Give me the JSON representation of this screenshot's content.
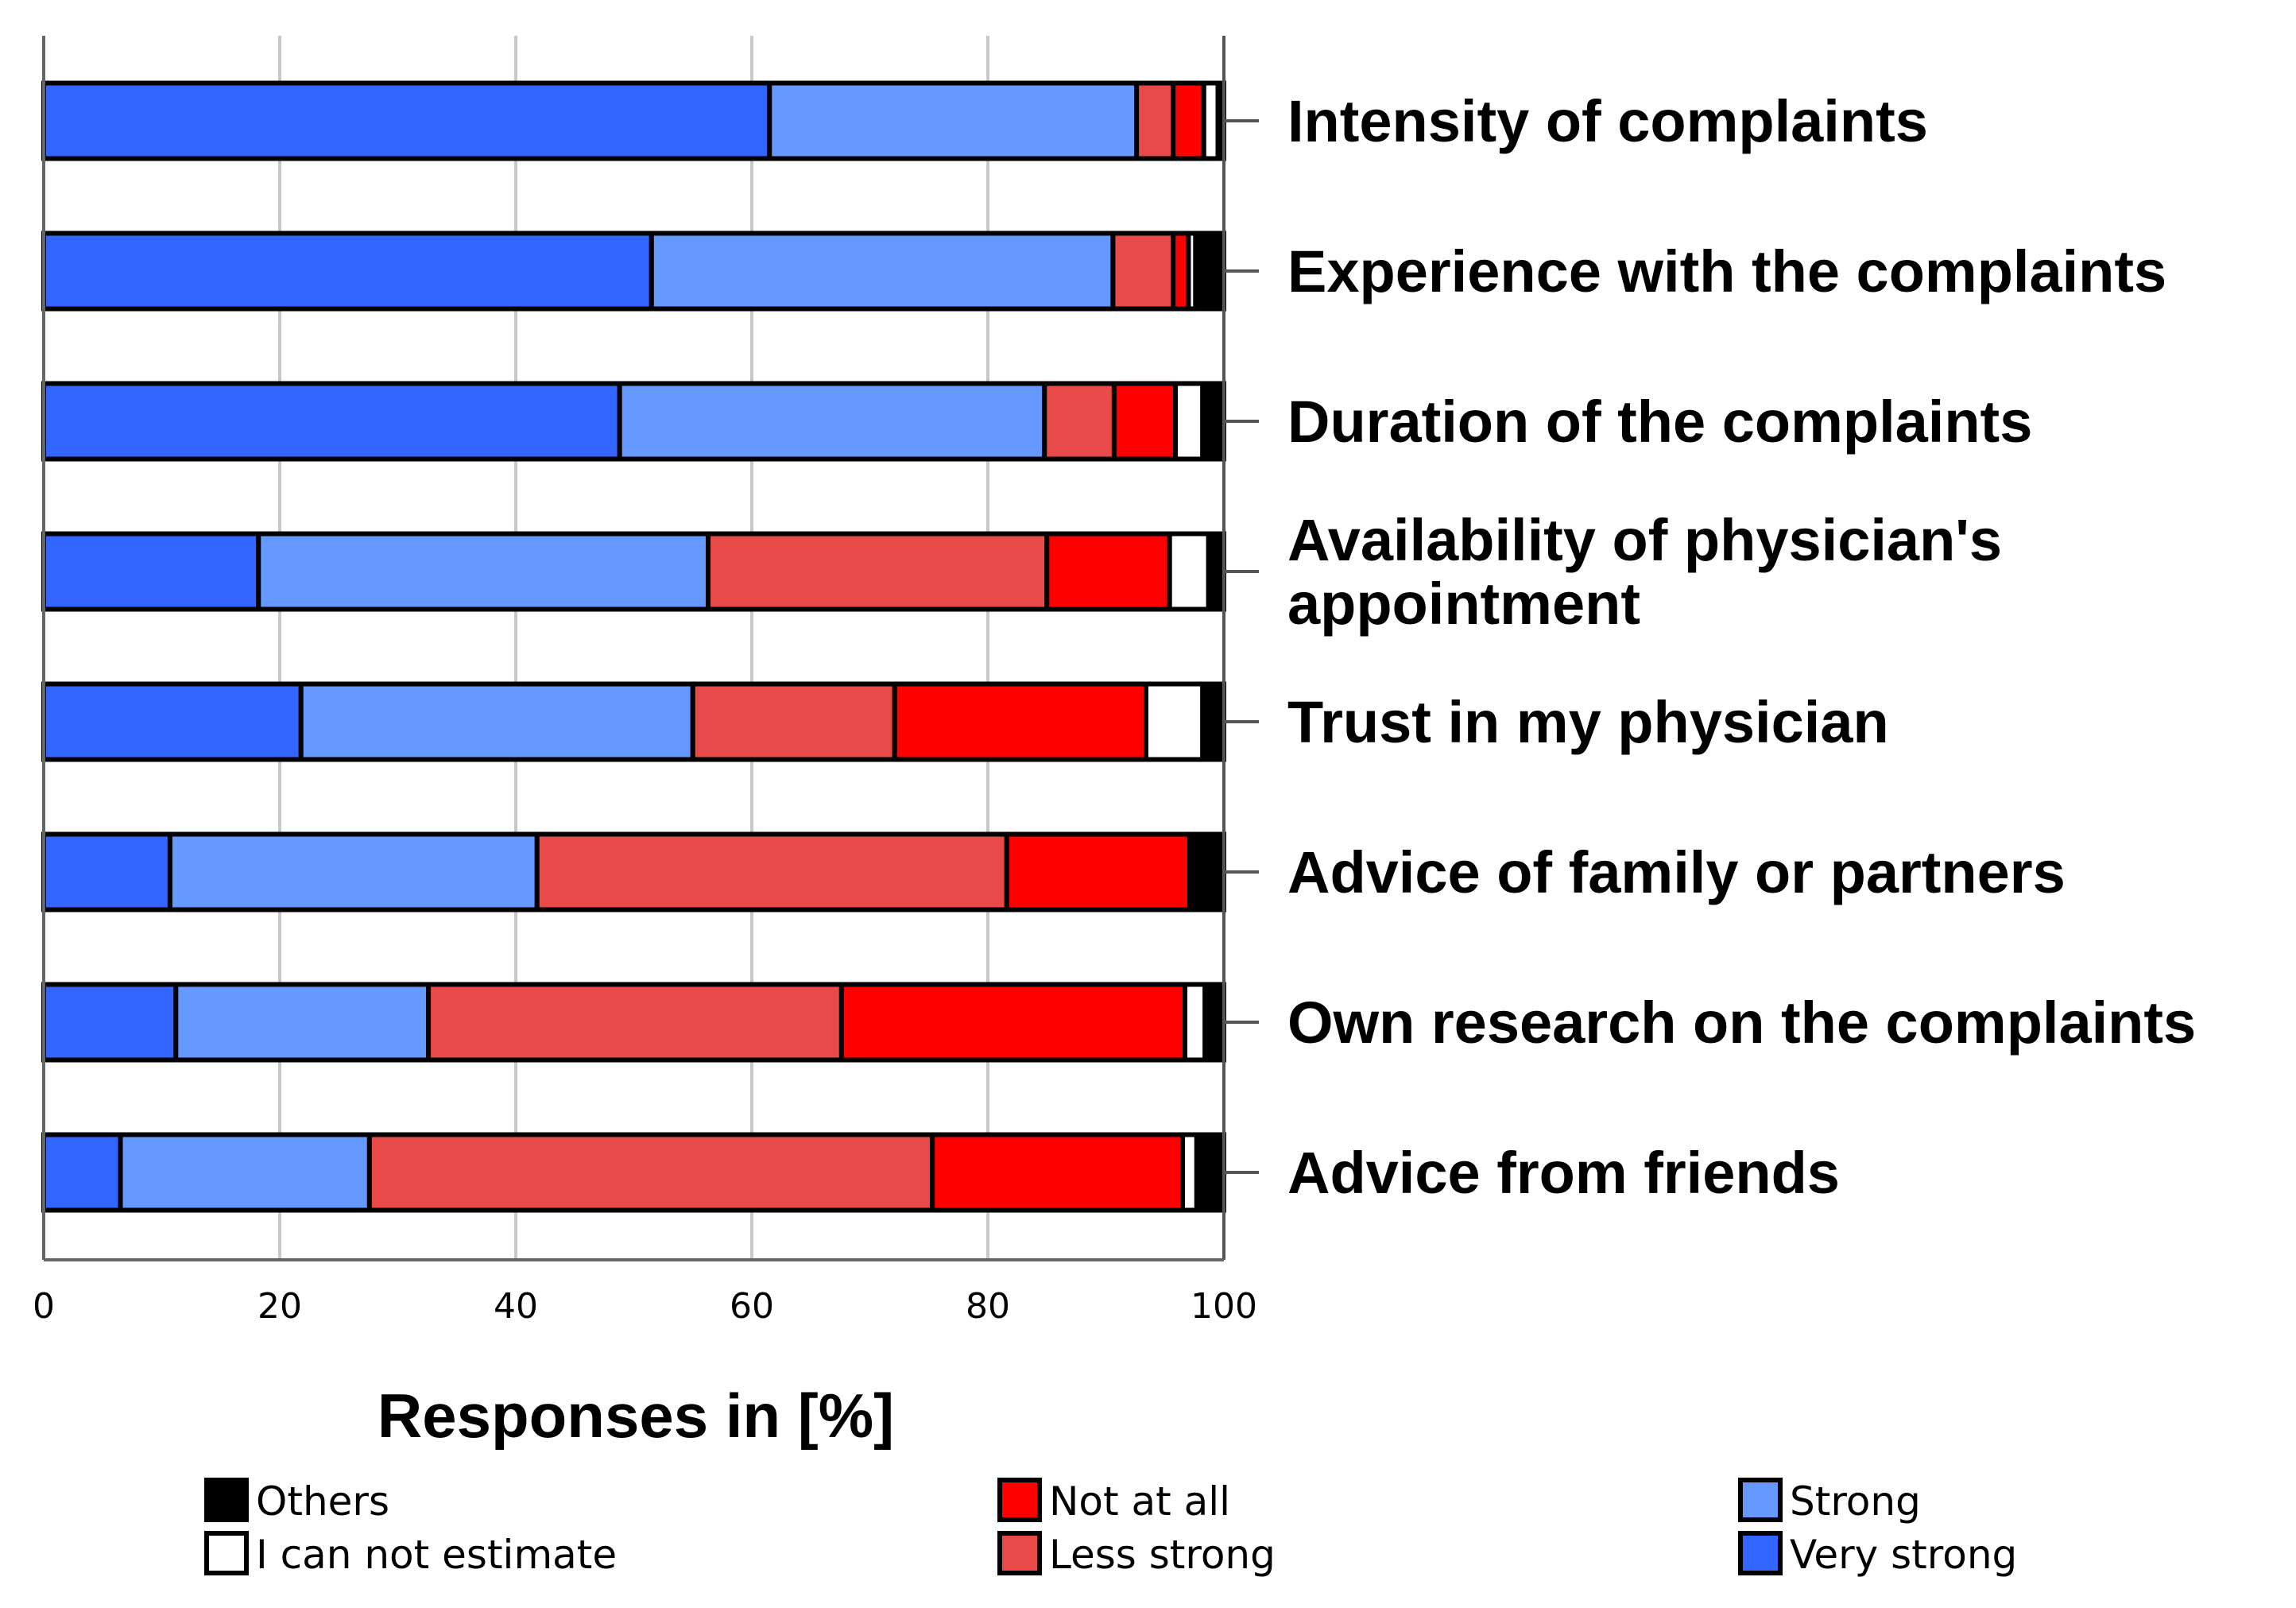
{
  "chart_data": {
    "type": "bar",
    "orientation": "horizontal-stacked",
    "xlabel": "Responses in [%]",
    "xlim": [
      0,
      100
    ],
    "xticks": [
      0,
      20,
      40,
      60,
      80,
      100
    ],
    "grid": true,
    "legend_position": "bottom",
    "categories": [
      "Intensity of complaints",
      "Experience with the complaints",
      "Duration of the complaints",
      "Availability of physician's appointment",
      "Trust in my physician",
      "Advice of family or partners",
      "Own research on the complaints",
      "Advice from friends"
    ],
    "category_lines": [
      [
        "Intensity of complaints"
      ],
      [
        "Experience with the complaints"
      ],
      [
        "Duration of the complaints"
      ],
      [
        "Availability of physician's",
        "appointment"
      ],
      [
        "Trust in my physician"
      ],
      [
        "Advice of family or partners"
      ],
      [
        "Own research on the complaints"
      ],
      [
        "Advice from friends"
      ]
    ],
    "series": [
      {
        "name": "Very strong",
        "color": "#3366ff",
        "values": [
          61.5,
          51.5,
          48.8,
          18.2,
          21.8,
          10.7,
          11.2,
          6.5
        ]
      },
      {
        "name": "Strong",
        "color": "#6699ff",
        "values": [
          31.1,
          39.1,
          36.0,
          38.1,
          33.2,
          31.1,
          21.4,
          21.1
        ]
      },
      {
        "name": "Less strong",
        "color": "#e84a4a",
        "values": [
          3.1,
          5.1,
          5.9,
          28.7,
          17.1,
          39.8,
          35.0,
          47.7
        ]
      },
      {
        "name": "Not at all",
        "color": "#ff0000",
        "values": [
          2.6,
          1.3,
          5.2,
          10.4,
          21.3,
          15.5,
          29.1,
          21.2
        ]
      },
      {
        "name": "I can not estimate",
        "color": "#ffffff",
        "values": [
          1.2,
          0.6,
          2.3,
          3.3,
          4.8,
          0.2,
          1.7,
          1.2
        ]
      },
      {
        "name": "Others",
        "color": "#000000",
        "values": [
          0.5,
          2.4,
          1.8,
          1.3,
          1.8,
          2.7,
          1.6,
          2.3
        ]
      }
    ],
    "legend_columns": [
      [
        "Others",
        "I can not estimate"
      ],
      [
        "Not at all",
        "Less strong"
      ],
      [
        "Strong",
        "Very strong"
      ]
    ]
  }
}
